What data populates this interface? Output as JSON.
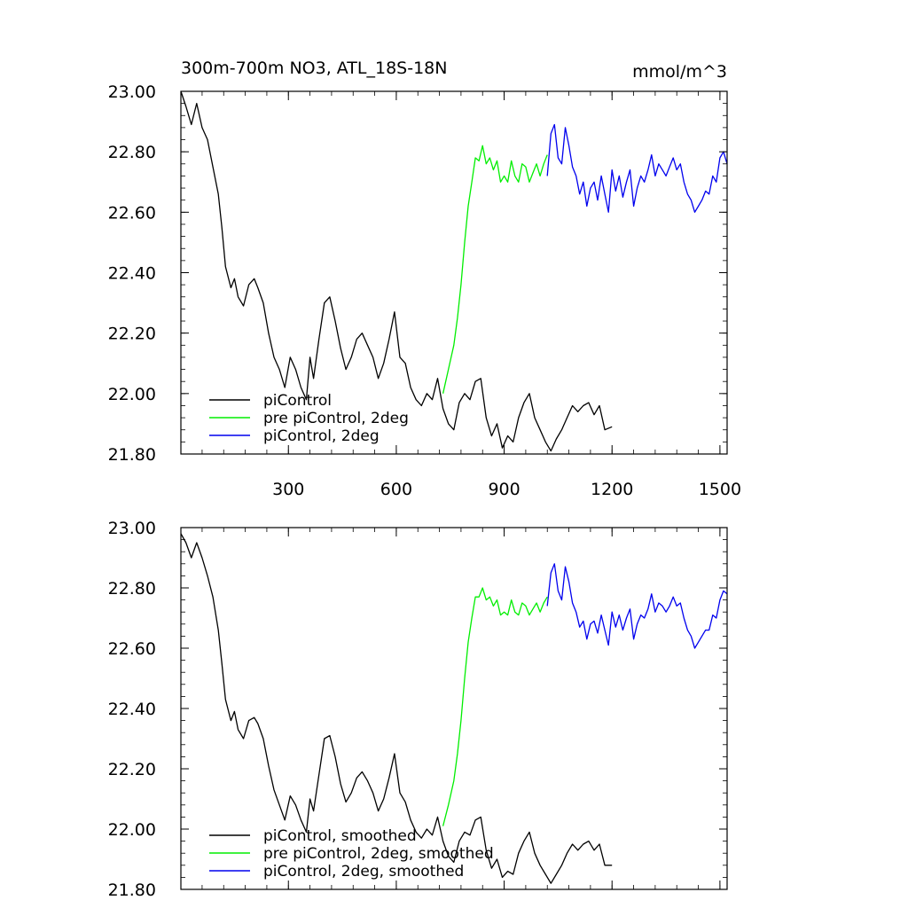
{
  "chart_data": [
    {
      "type": "line",
      "title": "300m-700m NO3, ATL_18S-18N",
      "units": "mmol/m^3",
      "xlim": [
        1,
        1520
      ],
      "ylim": [
        21.8,
        23.0
      ],
      "x_ticks": [
        300,
        600,
        900,
        1200,
        1500
      ],
      "x_tick_labels": [
        "300",
        "600",
        "900",
        "1200",
        "1500"
      ],
      "y_ticks": [
        21.8,
        22.0,
        22.2,
        22.4,
        22.6,
        22.8,
        23.0
      ],
      "y_tick_labels": [
        "21.80",
        "22.00",
        "22.20",
        "22.40",
        "22.60",
        "22.80",
        "23.00"
      ],
      "legend_position": "bottom-left",
      "series": [
        {
          "name": "piControl",
          "color": "#000000",
          "x": [
            1,
            15,
            30,
            45,
            60,
            75,
            90,
            105,
            115,
            125,
            140,
            150,
            160,
            175,
            190,
            205,
            215,
            230,
            245,
            260,
            275,
            290,
            305,
            320,
            335,
            350,
            360,
            370,
            385,
            400,
            415,
            430,
            445,
            460,
            475,
            490,
            505,
            520,
            535,
            550,
            565,
            580,
            595,
            610,
            625,
            640,
            655,
            670,
            685,
            700,
            715,
            730,
            745,
            760,
            775,
            790,
            805,
            820,
            835,
            850,
            865,
            880,
            895,
            910,
            925,
            940,
            955,
            970,
            985,
            1000,
            1015,
            1030,
            1045,
            1060,
            1075,
            1090,
            1105,
            1120,
            1135,
            1150,
            1165,
            1180,
            1200
          ],
          "y": [
            23.0,
            22.95,
            22.89,
            22.96,
            22.88,
            22.84,
            22.75,
            22.66,
            22.55,
            22.42,
            22.35,
            22.38,
            22.32,
            22.29,
            22.36,
            22.38,
            22.35,
            22.3,
            22.2,
            22.12,
            22.08,
            22.02,
            22.12,
            22.08,
            22.02,
            21.98,
            22.12,
            22.05,
            22.18,
            22.3,
            22.32,
            22.24,
            22.15,
            22.08,
            22.12,
            22.18,
            22.2,
            22.16,
            22.12,
            22.05,
            22.1,
            22.18,
            22.27,
            22.12,
            22.1,
            22.02,
            21.98,
            21.96,
            22.0,
            21.98,
            22.05,
            21.95,
            21.9,
            21.88,
            21.97,
            22.0,
            21.98,
            22.04,
            22.05,
            21.92,
            21.86,
            21.9,
            21.82,
            21.86,
            21.84,
            21.92,
            21.97,
            22.0,
            21.92,
            21.88,
            21.84,
            21.81,
            21.85,
            21.88,
            21.92,
            21.96,
            21.94,
            21.96,
            21.97,
            21.93,
            21.96,
            21.88,
            21.89
          ]
        },
        {
          "name": "pre piControl, 2deg",
          "color": "#00ee00",
          "x": [
            730,
            745,
            760,
            770,
            780,
            790,
            800,
            810,
            820,
            830,
            840,
            850,
            860,
            870,
            880,
            890,
            900,
            910,
            920,
            930,
            940,
            950,
            960,
            970,
            980,
            990,
            1000,
            1010,
            1020
          ],
          "y": [
            22.0,
            22.08,
            22.16,
            22.25,
            22.36,
            22.5,
            22.62,
            22.7,
            22.78,
            22.77,
            22.82,
            22.76,
            22.78,
            22.74,
            22.77,
            22.7,
            22.72,
            22.7,
            22.77,
            22.72,
            22.7,
            22.76,
            22.75,
            22.7,
            22.73,
            22.76,
            22.72,
            22.76,
            22.79
          ]
        },
        {
          "name": "piControl, 2deg",
          "color": "#0000ee",
          "x": [
            1020,
            1030,
            1040,
            1050,
            1060,
            1070,
            1080,
            1090,
            1100,
            1110,
            1120,
            1130,
            1140,
            1150,
            1160,
            1170,
            1180,
            1190,
            1200,
            1210,
            1220,
            1230,
            1240,
            1250,
            1260,
            1270,
            1280,
            1290,
            1300,
            1310,
            1320,
            1330,
            1340,
            1350,
            1360,
            1370,
            1380,
            1390,
            1400,
            1410,
            1420,
            1430,
            1440,
            1450,
            1460,
            1470,
            1480,
            1490,
            1500,
            1510,
            1520
          ],
          "y": [
            22.72,
            22.86,
            22.89,
            22.78,
            22.76,
            22.88,
            22.82,
            22.75,
            22.72,
            22.66,
            22.7,
            22.62,
            22.68,
            22.7,
            22.64,
            22.72,
            22.66,
            22.6,
            22.74,
            22.67,
            22.72,
            22.65,
            22.7,
            22.74,
            22.62,
            22.68,
            22.72,
            22.7,
            22.74,
            22.79,
            22.72,
            22.76,
            22.74,
            22.72,
            22.75,
            22.78,
            22.74,
            22.76,
            22.7,
            22.66,
            22.64,
            22.6,
            22.62,
            22.64,
            22.67,
            22.66,
            22.72,
            22.7,
            22.78,
            22.8,
            22.76
          ]
        }
      ]
    },
    {
      "type": "line",
      "title": "",
      "xlim": [
        1,
        1520
      ],
      "ylim": [
        21.8,
        23.0
      ],
      "x_ticks": [
        300,
        600,
        900,
        1200,
        1500
      ],
      "y_ticks": [
        21.8,
        22.0,
        22.2,
        22.4,
        22.6,
        22.8,
        23.0
      ],
      "y_tick_labels": [
        "21.80",
        "22.00",
        "22.20",
        "22.40",
        "22.60",
        "22.80",
        "23.00"
      ],
      "legend_position": "bottom-left",
      "series": [
        {
          "name": "piControl, smoothed",
          "color": "#000000",
          "x": [
            1,
            15,
            30,
            45,
            60,
            75,
            90,
            105,
            115,
            125,
            140,
            150,
            160,
            175,
            190,
            205,
            215,
            230,
            245,
            260,
            275,
            290,
            305,
            320,
            335,
            350,
            360,
            370,
            385,
            400,
            415,
            430,
            445,
            460,
            475,
            490,
            505,
            520,
            535,
            550,
            565,
            580,
            595,
            610,
            625,
            640,
            655,
            670,
            685,
            700,
            715,
            730,
            745,
            760,
            775,
            790,
            805,
            820,
            835,
            850,
            865,
            880,
            895,
            910,
            925,
            940,
            955,
            970,
            985,
            1000,
            1015,
            1030,
            1045,
            1060,
            1075,
            1090,
            1105,
            1120,
            1135,
            1150,
            1165,
            1180,
            1200
          ],
          "y": [
            22.98,
            22.95,
            22.9,
            22.95,
            22.9,
            22.84,
            22.77,
            22.66,
            22.55,
            22.43,
            22.36,
            22.39,
            22.33,
            22.3,
            22.36,
            22.37,
            22.35,
            22.3,
            22.21,
            22.13,
            22.08,
            22.03,
            22.11,
            22.08,
            22.03,
            21.99,
            22.1,
            22.06,
            22.18,
            22.3,
            22.31,
            22.24,
            22.15,
            22.09,
            22.12,
            22.17,
            22.19,
            22.16,
            22.12,
            22.06,
            22.1,
            22.17,
            22.25,
            22.12,
            22.09,
            22.03,
            21.99,
            21.97,
            22.0,
            21.98,
            22.04,
            21.96,
            21.91,
            21.89,
            21.96,
            21.99,
            21.98,
            22.03,
            22.04,
            21.93,
            21.87,
            21.9,
            21.84,
            21.86,
            21.85,
            21.92,
            21.96,
            21.99,
            21.92,
            21.88,
            21.85,
            21.82,
            21.85,
            21.88,
            21.92,
            21.95,
            21.93,
            21.95,
            21.96,
            21.93,
            21.95,
            21.88,
            21.88
          ]
        },
        {
          "name": "pre piControl, 2deg, smoothed",
          "color": "#00ee00",
          "x": [
            730,
            745,
            760,
            770,
            780,
            790,
            800,
            810,
            820,
            830,
            840,
            850,
            860,
            870,
            880,
            890,
            900,
            910,
            920,
            930,
            940,
            950,
            960,
            970,
            980,
            990,
            1000,
            1010,
            1020
          ],
          "y": [
            22.01,
            22.08,
            22.16,
            22.25,
            22.36,
            22.5,
            22.62,
            22.7,
            22.77,
            22.77,
            22.8,
            22.76,
            22.77,
            22.74,
            22.76,
            22.71,
            22.72,
            22.71,
            22.76,
            22.72,
            22.71,
            22.75,
            22.74,
            22.71,
            22.73,
            22.75,
            22.72,
            22.75,
            22.77
          ]
        },
        {
          "name": "piControl, 2deg, smoothed",
          "color": "#0000ee",
          "x": [
            1020,
            1030,
            1040,
            1050,
            1060,
            1070,
            1080,
            1090,
            1100,
            1110,
            1120,
            1130,
            1140,
            1150,
            1160,
            1170,
            1180,
            1190,
            1200,
            1210,
            1220,
            1230,
            1240,
            1250,
            1260,
            1270,
            1280,
            1290,
            1300,
            1310,
            1320,
            1330,
            1340,
            1350,
            1360,
            1370,
            1380,
            1390,
            1400,
            1410,
            1420,
            1430,
            1440,
            1450,
            1460,
            1470,
            1480,
            1490,
            1500,
            1510,
            1520
          ],
          "y": [
            22.74,
            22.85,
            22.88,
            22.79,
            22.76,
            22.87,
            22.82,
            22.75,
            22.72,
            22.67,
            22.69,
            22.63,
            22.68,
            22.69,
            22.65,
            22.71,
            22.66,
            22.61,
            22.72,
            22.67,
            22.71,
            22.66,
            22.7,
            22.73,
            22.63,
            22.68,
            22.71,
            22.7,
            22.73,
            22.78,
            22.72,
            22.75,
            22.74,
            22.72,
            22.74,
            22.77,
            22.74,
            22.75,
            22.7,
            22.66,
            22.64,
            22.6,
            22.62,
            22.64,
            22.66,
            22.66,
            22.71,
            22.7,
            22.76,
            22.79,
            22.78
          ]
        }
      ]
    }
  ]
}
